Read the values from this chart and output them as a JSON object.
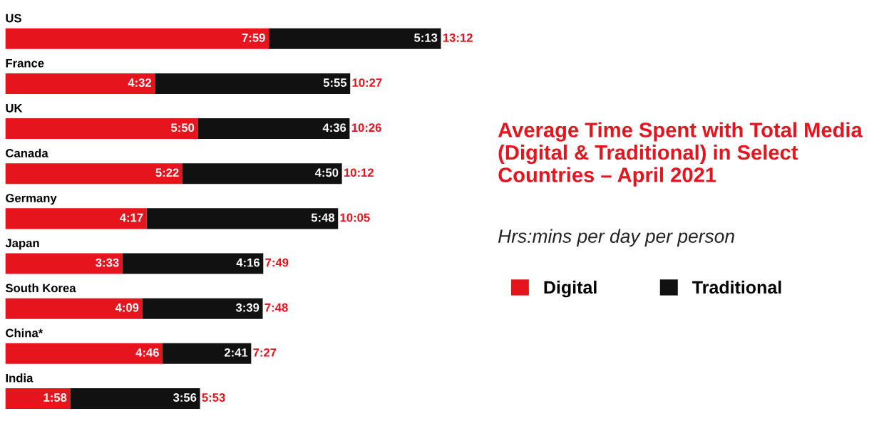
{
  "chart_data": {
    "type": "bar",
    "orientation": "horizontal",
    "stacked": true,
    "title": "Average Time Spent with Total Media (Digital & Traditional) in Select Countries – April 2021",
    "subtitle": "Hrs:mins per day per person",
    "categories": [
      "US",
      "France",
      "UK",
      "Canada",
      "Germany",
      "Japan",
      "South Korea",
      "China*",
      "India"
    ],
    "series": [
      {
        "name": "Digital",
        "color": "#e5141d",
        "values": [
          479,
          272,
          350,
          322,
          257,
          213,
          249,
          286,
          118
        ],
        "value_labels": [
          "7:59",
          "4:32",
          "5:50",
          "5:22",
          "4:17",
          "3:33",
          "4:09",
          "4:46",
          "1:58"
        ]
      },
      {
        "name": "Traditional",
        "color": "#111111",
        "values": [
          313,
          355,
          276,
          290,
          348,
          256,
          219,
          161,
          236
        ],
        "value_labels": [
          "5:13",
          "5:55",
          "4:36",
          "4:50",
          "5:48",
          "4:16",
          "3:39",
          "2:41",
          "3:56"
        ]
      }
    ],
    "totals": [
      "13:12",
      "10:27",
      "10:26",
      "10:12",
      "10:05",
      "7:49",
      "7:48",
      "7:27",
      "5:53"
    ],
    "legend": "right"
  }
}
